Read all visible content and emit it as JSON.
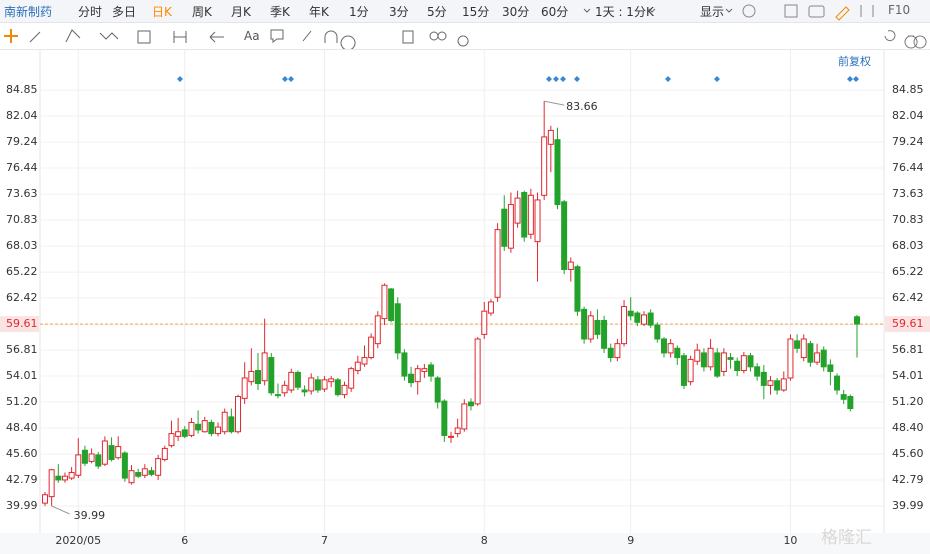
{
  "toolbar": {
    "stock": "南新制药",
    "tabs": [
      "分时",
      "多日",
      "日K",
      "周K",
      "月K",
      "季K",
      "年K",
      "1分",
      "3分",
      "5分",
      "15分",
      "30分",
      "60分",
      "1天 : 1分K"
    ],
    "display": "显示",
    "f10": "F10",
    "text_tool": "Aa",
    "adjust": "前复权",
    "watermark": "格隆汇"
  },
  "chart_data": {
    "type": "candlestick",
    "categories": [
      null,
      null,
      null,
      null,
      null,
      "2020/05",
      null,
      null,
      null,
      null,
      null,
      null,
      null,
      null,
      null,
      null,
      null,
      null,
      null,
      null,
      null,
      "6",
      null,
      null,
      null,
      null,
      null,
      null,
      null,
      null,
      null,
      null,
      null,
      null,
      null,
      null,
      null,
      null,
      null,
      null,
      null,
      null,
      "7",
      null,
      null,
      null,
      null,
      null,
      null,
      null,
      null,
      null,
      null,
      null,
      null,
      null,
      null,
      null,
      null,
      null,
      null,
      null,
      null,
      null,
      null,
      null,
      "8",
      null,
      null,
      null,
      null,
      null,
      null,
      null,
      null,
      null,
      null,
      null,
      null,
      null,
      null,
      null,
      null,
      null,
      null,
      null,
      null,
      null,
      "9",
      null,
      null,
      null,
      null,
      null,
      null,
      null,
      null,
      null,
      null,
      null,
      null,
      null,
      null,
      null,
      null,
      null,
      null,
      null,
      null,
      null,
      null,
      null,
      "10",
      null,
      null,
      null,
      null,
      null,
      null,
      null,
      null,
      null,
      null
    ],
    "open": [
      40.3,
      41.0,
      43.2,
      42.8,
      43.0,
      43.3,
      46.0,
      44.8,
      45.5,
      44.5,
      46.5,
      45.2,
      45.7,
      42.5,
      43.6,
      43.3,
      43.8,
      43.3,
      45.0,
      46.5,
      47.5,
      48.2,
      47.6,
      48.8,
      48.0,
      49.0,
      47.8,
      48.0,
      49.6,
      48.0,
      51.6,
      53.4,
      54.6,
      53.5,
      56.0,
      52.0,
      52.2,
      52.5,
      54.4,
      52.5,
      52.4,
      53.6,
      52.6,
      53.4,
      53.6,
      52.0,
      52.7,
      54.6,
      55.3,
      56.0,
      57.5,
      60.2,
      63.4,
      61.8,
      56.5,
      54.2,
      53.4,
      54.5,
      55.2,
      53.8,
      51.3,
      47.5,
      47.8,
      48.3,
      51.2,
      51.0,
      58.5,
      60.8,
      62.5,
      72.0,
      67.8,
      70.5,
      73.8,
      69.3,
      68.5,
      73.5,
      79.0,
      79.5,
      72.8,
      65.5,
      65.8,
      61.2,
      58.0,
      60.0,
      60.0,
      57.0,
      56.0,
      57.5,
      61.0,
      60.8,
      59.6,
      60.8,
      59.5,
      58.0,
      56.5,
      57.0,
      56.2,
      53.4,
      55.6,
      56.5,
      55.0,
      56.5,
      54.5,
      56.0,
      55.6,
      54.6,
      56.2,
      55.0,
      54.4,
      53.0,
      53.5,
      52.5,
      53.8,
      57.8,
      56.0,
      57.5,
      55.5,
      56.8,
      55.2,
      54.0,
      52.0,
      51.8,
      60.4
    ],
    "high": [
      41.5,
      44.0,
      44.5,
      43.6,
      44.2,
      47.3,
      46.5,
      46.2,
      45.8,
      47.5,
      47.4,
      47.5,
      45.9,
      44.4,
      44.0,
      44.5,
      44.2,
      45.5,
      46.5,
      49.2,
      49.5,
      48.6,
      49.5,
      50.3,
      49.6,
      49.3,
      49.0,
      50.5,
      50.5,
      52.0,
      55.5,
      57.0,
      56.5,
      60.2,
      56.5,
      53.2,
      53.5,
      54.8,
      54.6,
      53.0,
      54.3,
      54.0,
      54.0,
      54.0,
      53.8,
      53.4,
      55.0,
      56.2,
      57.3,
      58.6,
      61.0,
      64.0,
      63.5,
      62.5,
      56.9,
      55.0,
      55.2,
      55.3,
      55.5,
      54.0,
      51.5,
      48.0,
      49.4,
      51.5,
      51.6,
      58.2,
      62.0,
      62.3,
      70.5,
      73.5,
      73.8,
      74.0,
      74.0,
      74.2,
      73.8,
      83.66,
      81.0,
      80.8,
      73.0,
      66.8,
      66.0,
      61.5,
      61.0,
      61.2,
      60.5,
      57.5,
      58.0,
      62.2,
      62.5,
      61.0,
      61.0,
      61.2,
      59.8,
      58.2,
      58.0,
      57.3,
      56.5,
      56.2,
      57.5,
      57.0,
      58.0,
      57.0,
      57.0,
      56.5,
      56.0,
      56.6,
      56.5,
      55.4,
      55.2,
      54.0,
      53.8,
      54.5,
      58.5,
      58.5,
      58.5,
      57.8,
      57.5,
      57.2,
      55.8,
      54.3,
      52.5,
      52.0,
      60.6
    ],
    "low": [
      40.0,
      39.99,
      42.5,
      42.5,
      42.8,
      43.0,
      44.3,
      44.6,
      44.0,
      44.3,
      44.8,
      45.0,
      42.6,
      42.3,
      43.0,
      43.0,
      43.2,
      42.8,
      44.8,
      46.3,
      47.0,
      47.3,
      47.4,
      47.8,
      47.9,
      47.5,
      47.5,
      47.7,
      47.8,
      47.8,
      51.0,
      53.0,
      52.5,
      53.0,
      51.9,
      51.6,
      51.8,
      52.2,
      52.5,
      51.8,
      52.0,
      52.2,
      52.3,
      52.8,
      51.8,
      51.6,
      52.3,
      54.2,
      55.0,
      55.8,
      57.0,
      59.5,
      59.8,
      55.8,
      53.5,
      52.8,
      52.0,
      53.8,
      53.4,
      50.5,
      46.9,
      46.8,
      47.4,
      48.0,
      50.3,
      50.8,
      58.0,
      60.5,
      62.0,
      67.5,
      67.3,
      70.0,
      68.5,
      68.8,
      64.2,
      73.0,
      76.0,
      72.0,
      65.0,
      64.2,
      60.5,
      57.5,
      57.6,
      58.0,
      56.5,
      55.5,
      55.6,
      57.2,
      60.0,
      59.4,
      59.4,
      59.2,
      57.6,
      56.0,
      56.0,
      55.2,
      52.6,
      53.0,
      55.2,
      54.5,
      54.6,
      53.8,
      54.0,
      54.8,
      54.0,
      54.3,
      54.5,
      53.5,
      51.5,
      52.0,
      52.0,
      52.3,
      53.5,
      56.5,
      55.6,
      55.0,
      55.2,
      54.5,
      53.0,
      52.0,
      51.0,
      50.2,
      56.0
    ],
    "close": [
      41.2,
      43.9,
      42.8,
      43.2,
      43.6,
      45.5,
      44.6,
      45.6,
      44.3,
      47.0,
      45.0,
      46.4,
      43.0,
      43.8,
      43.2,
      44.0,
      43.4,
      45.1,
      46.2,
      47.8,
      48.0,
      47.5,
      49.0,
      48.2,
      49.2,
      47.8,
      48.5,
      50.1,
      48.0,
      51.8,
      53.8,
      54.5,
      53.2,
      56.5,
      52.2,
      51.9,
      53.0,
      54.4,
      52.8,
      52.3,
      53.8,
      52.5,
      53.6,
      53.7,
      52.0,
      53.0,
      54.8,
      55.5,
      56.0,
      58.2,
      60.5,
      63.8,
      60.0,
      56.5,
      54.0,
      53.3,
      54.8,
      54.8,
      54.0,
      51.2,
      47.6,
      47.5,
      48.4,
      51.0,
      50.8,
      58.0,
      61.0,
      62.0,
      69.8,
      68.0,
      72.5,
      73.2,
      69.0,
      73.5,
      73.0,
      79.8,
      80.5,
      72.5,
      65.5,
      66.3,
      61.0,
      58.0,
      60.5,
      58.5,
      57.0,
      56.0,
      57.5,
      61.5,
      60.5,
      59.8,
      60.6,
      59.5,
      58.0,
      56.5,
      57.5,
      56.0,
      53.0,
      55.8,
      56.8,
      55.0,
      57.0,
      54.0,
      56.5,
      55.8,
      54.6,
      56.2,
      55.0,
      54.0,
      53.0,
      53.5,
      52.5,
      53.7,
      58.0,
      57.0,
      58.0,
      55.5,
      56.5,
      55.0,
      54.5,
      52.5,
      51.5,
      50.5,
      59.61
    ],
    "up_color": "#e0282e",
    "down_color": "#22a22a",
    "price_line_color": "#f0a050",
    "ylim": [
      37.4,
      86.8
    ],
    "yticks": [
      39.99,
      42.79,
      {
        "value": 45.6,
        "label": "45.60"
      },
      {
        "value": 48.4,
        "label": "48.40"
      },
      {
        "value": 51.2,
        "label": "51.20"
      },
      54.01,
      56.81,
      59.61,
      62.42,
      65.22,
      68.03,
      70.83,
      73.63,
      76.44,
      79.24,
      82.04,
      84.85
    ],
    "grid": true
  }
}
